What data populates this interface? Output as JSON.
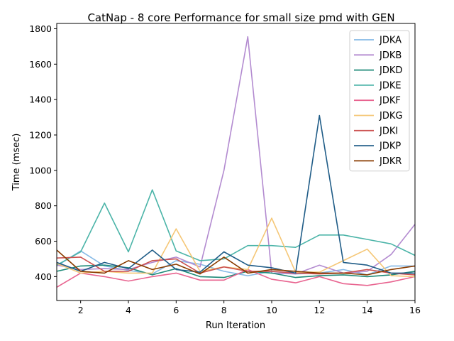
{
  "chart_data": {
    "type": "line",
    "title": "CatNap - 8 core Performance for small size pmd with GEN",
    "xlabel": "Run Iteration",
    "ylabel": "Time (msec)",
    "xlim": [
      1,
      16
    ],
    "ylim": [
      265,
      1830
    ],
    "xticks": [
      2,
      4,
      6,
      8,
      10,
      12,
      14,
      16
    ],
    "yticks": [
      400,
      600,
      800,
      1000,
      1200,
      1400,
      1600,
      1800
    ],
    "grid": false,
    "legend_position": "top-right",
    "x": [
      1,
      2,
      3,
      4,
      5,
      6,
      7,
      8,
      9,
      10,
      11,
      12,
      13,
      14,
      15,
      16
    ],
    "series": [
      {
        "name": "JDKA",
        "color": "#85b9e6",
        "values": [
          460,
          545,
          460,
          435,
          415,
          490,
          470,
          430,
          405,
          430,
          415,
          420,
          440,
          410,
          460,
          460
        ]
      },
      {
        "name": "JDKB",
        "color": "#b38bd0",
        "values": [
          465,
          440,
          445,
          440,
          480,
          510,
          455,
          1000,
          1755,
          420,
          415,
          465,
          420,
          430,
          525,
          695
        ]
      },
      {
        "name": "JDKD",
        "color": "#1e8a78",
        "values": [
          430,
          460,
          465,
          450,
          410,
          445,
          400,
          395,
          430,
          420,
          395,
          405,
          410,
          400,
          410,
          430
        ]
      },
      {
        "name": "JDKE",
        "color": "#4bb4a8",
        "values": [
          465,
          540,
          815,
          540,
          890,
          545,
          490,
          500,
          575,
          575,
          565,
          635,
          635,
          610,
          585,
          520
        ]
      },
      {
        "name": "JDKF",
        "color": "#e8638f",
        "values": [
          340,
          420,
          400,
          375,
          400,
          420,
          380,
          380,
          440,
          385,
          365,
          400,
          360,
          350,
          370,
          400
        ]
      },
      {
        "name": "JDKG",
        "color": "#f5c777",
        "values": [
          475,
          420,
          430,
          420,
          420,
          670,
          430,
          455,
          440,
          730,
          425,
          425,
          490,
          555,
          405,
          400
        ]
      },
      {
        "name": "JDKI",
        "color": "#cc5250",
        "values": [
          505,
          510,
          430,
          430,
          490,
          500,
          420,
          455,
          430,
          430,
          420,
          415,
          420,
          440,
          420,
          410
        ]
      },
      {
        "name": "JDKP",
        "color": "#1f5c87",
        "values": [
          480,
          430,
          480,
          445,
          550,
          440,
          425,
          540,
          465,
          450,
          420,
          1310,
          480,
          465,
          420,
          420
        ]
      },
      {
        "name": "JDKR",
        "color": "#8a3c00",
        "values": [
          550,
          430,
          420,
          490,
          440,
          470,
          415,
          510,
          420,
          440,
          430,
          420,
          420,
          410,
          440,
          460
        ]
      }
    ]
  }
}
